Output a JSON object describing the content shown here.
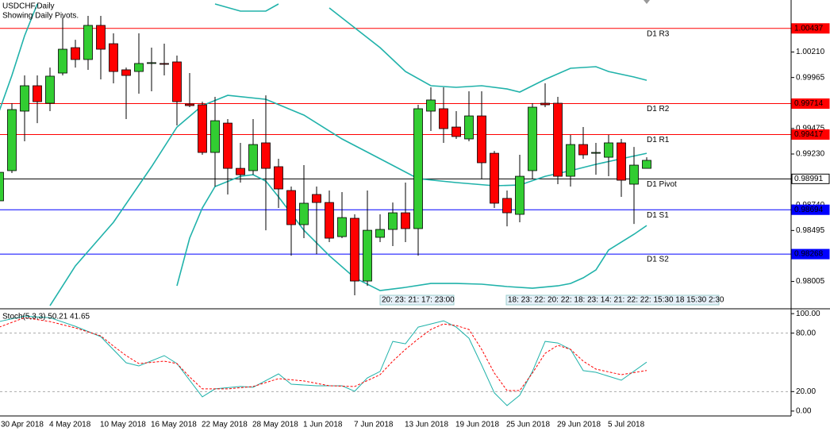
{
  "chart_data": [
    {
      "type": "candlestick",
      "title": "USDCHF,Daily",
      "subtitle": "Showing Daily Pivots.",
      "categories": [
        "30 Apr 2018",
        null,
        null,
        null,
        "4 May 2018",
        null,
        null,
        null,
        "10 May 2018",
        null,
        null,
        null,
        "16 May 2018",
        null,
        null,
        null,
        "22 May 2018",
        null,
        null,
        null,
        "28 May 2018",
        null,
        null,
        null,
        "1 Jun 2018",
        null,
        null,
        null,
        "7 Jun 2018",
        null,
        null,
        null,
        "13 Jun 2018",
        null,
        null,
        null,
        "19 Jun 2018",
        null,
        null,
        null,
        "25 Jun 2018",
        null,
        null,
        null,
        "29 Jun 2018",
        null,
        null,
        null,
        "5 Jul 2018",
        null,
        null,
        null
      ],
      "open": [
        0.9878,
        0.9907,
        0.99642,
        0.99886,
        0.99718,
        1.00008,
        1.00252,
        1.00138,
        1.00466,
        1.0029,
        1.00039,
        1.00023,
        1.001,
        1.001,
        1.00115,
        0.9971,
        0.99703,
        0.99245,
        0.99527,
        0.99092,
        0.9907,
        0.99337,
        0.99108,
        0.98879,
        0.98551,
        0.98841,
        0.98764,
        0.98436,
        0.98612,
        0.98009,
        0.98429,
        0.98505,
        0.98665,
        0.98513,
        0.99642,
        0.99665,
        0.99489,
        0.99375,
        0.99596,
        0.99237,
        0.98803,
        0.9865,
        0.9907,
        0.99718,
        0.99718,
        0.99016,
        0.99321,
        0.99237,
        0.99199,
        0.99337,
        0.9894,
        0.99092
      ],
      "high": [
        0.9926,
        0.99718,
        0.99985,
        0.99985,
        1.00061,
        1.00542,
        1.00328,
        1.00557,
        1.00557,
        1.0039,
        1.00061,
        1.0039,
        1.00252,
        1.0029,
        1.00176,
        1.00008,
        0.99733,
        0.99779,
        0.99566,
        0.99337,
        0.99566,
        0.99794,
        0.99184,
        0.98917,
        0.99123,
        0.98917,
        0.98879,
        0.98864,
        0.9865,
        0.98879,
        0.9865,
        0.98764,
        0.98955,
        0.99703,
        0.99871,
        0.99871,
        0.99642,
        0.99833,
        0.99833,
        0.9926,
        0.98879,
        0.99222,
        0.99718,
        0.99909,
        0.99779,
        0.99413,
        0.99489,
        0.99337,
        0.99413,
        0.99375,
        0.99298,
        0.99199
      ],
      "low": [
        0.98726,
        0.99047,
        0.99352,
        0.99527,
        0.99642,
        0.99985,
        1.00061,
        1.00039,
        0.99947,
        0.99909,
        0.99566,
        0.9981,
        0.99833,
        0.99985,
        0.99505,
        0.9968,
        0.99222,
        0.98917,
        0.98841,
        0.98955,
        0.99031,
        0.98497,
        0.98711,
        0.98253,
        0.98421,
        0.98268,
        0.98383,
        0.98421,
        0.97872,
        0.97963,
        0.98383,
        0.98345,
        0.98383,
        0.98253,
        0.99451,
        0.99337,
        0.99375,
        0.99352,
        0.98993,
        0.98711,
        0.98535,
        0.98574,
        0.98993,
        0.9968,
        0.9894,
        0.98917,
        0.99184,
        0.99031,
        0.99016,
        0.98818,
        0.98558,
        0.99092
      ],
      "close": [
        0.99054,
        0.99657,
        0.99886,
        0.99733,
        0.99978,
        1.00237,
        1.00138,
        1.00466,
        1.00237,
        1.00023,
        0.99985,
        1.001,
        1.00108,
        1.00092,
        0.99733,
        0.99695,
        0.99245,
        0.9955,
        0.99092,
        0.99031,
        0.99321,
        0.99092,
        0.98894,
        0.98551,
        0.98757,
        0.98764,
        0.98421,
        0.98619,
        0.98009,
        0.98497,
        0.98505,
        0.98665,
        0.98513,
        0.99665,
        0.99749,
        0.99474,
        0.99398,
        0.99596,
        0.99146,
        0.98757,
        0.98665,
        0.99016,
        0.9968,
        0.99703,
        0.99016,
        0.99321,
        0.99222,
        0.99245,
        0.99337,
        0.98978,
        0.99123,
        0.99169
      ],
      "up_color": "#32cd32",
      "down_color": "#ff0000",
      "bands": [
        {
          "color": "#20b2aa",
          "x": [
            0,
            1,
            2,
            3,
            10,
            17,
            19,
            21,
            22,
            24,
            26,
            28,
            30,
            32,
            34,
            36,
            38,
            40,
            41,
            43,
            45,
            47,
            48,
            50,
            51
          ],
          "values": [
            0.99642,
            0.99985,
            1.00367,
            1.00672,
            null,
            1.00672,
            1.00603,
            1.00603,
            1.00672,
            null,
            1.00634,
            1.00443,
            1.00252,
            1.00023,
            0.99886,
            0.99871,
            0.99886,
            0.99855,
            0.99825,
            0.99947,
            1.00054,
            1.00069,
            1.00023,
            0.9997,
            0.99939
          ]
        },
        {
          "color": "#20b2aa",
          "x": [
            4,
            6,
            9,
            12,
            14,
            16,
            18,
            21,
            24,
            27,
            30,
            33,
            36,
            39,
            41,
            43,
            45,
            47,
            49,
            51
          ],
          "values": [
            0.97772,
            0.98154,
            0.98574,
            0.99108,
            0.99489,
            0.99695,
            0.99794,
            0.99756,
            0.99604,
            0.99375,
            0.99184,
            0.98993,
            0.98955,
            0.98925,
            0.98932,
            0.99016,
            0.9907,
            0.99131,
            0.99184,
            0.99237
          ]
        },
        {
          "color": "#20b2aa",
          "x": [
            14,
            15,
            16,
            17,
            19,
            20,
            21,
            22,
            24,
            26,
            28,
            30,
            32,
            34,
            36,
            38,
            40,
            42,
            44,
            45,
            46,
            47,
            48,
            50,
            51
          ],
          "values": [
            0.97963,
            0.98421,
            0.98711,
            0.98917,
            0.99016,
            0.99031,
            0.9897,
            0.98818,
            0.98497,
            0.98253,
            0.9804,
            0.97917,
            0.97948,
            0.97986,
            0.97986,
            0.97979,
            0.97956,
            0.9794,
            0.97963,
            0.97986,
            0.9804,
            0.98116,
            0.98307,
            0.98459,
            0.98543
          ]
        }
      ],
      "pivots": [
        {
          "name": "D1 R3",
          "value": 1.00437,
          "color": "#ff0000"
        },
        {
          "name": "D1 R2",
          "value": 0.99714,
          "color": "#ff0000"
        },
        {
          "name": "D1 R1",
          "value": 0.99417,
          "color": "#ff0000"
        },
        {
          "name": "D1 Pivot",
          "value": 0.98991,
          "color": "#000000"
        },
        {
          "name": "D1 S1",
          "value": 0.98694,
          "color": "#0000ff"
        },
        {
          "name": "D1 S2",
          "value": 0.98268,
          "color": "#0000ff"
        }
      ],
      "ylim": [
        0.9775,
        1.0071
      ],
      "yticks": [
        {
          "value": 1.0021,
          "label": "1.00210"
        },
        0.99965,
        0.99475,
        {
          "value": 0.9923,
          "label": "0.99230"
        },
        {
          "value": 0.9874,
          "label": "0.98740"
        },
        0.98495,
        0.98005
      ],
      "time_labels": [
        "20: 23: 21: 17: 23:00",
        "18: 23: 22: 20: 22: 18: 23: 14: 21: 22: 22: 15:30 18 15:30 2:30"
      ]
    },
    {
      "type": "line",
      "title": "Stoch(5,3,3) 50.21 41.65",
      "series": [
        {
          "color": "#20b2aa",
          "dash": false,
          "x": [
            0,
            2,
            4,
            6,
            8,
            10,
            11,
            13,
            14,
            16,
            17,
            19,
            20,
            22,
            23,
            25,
            27,
            28,
            29,
            30,
            31,
            32,
            33,
            35,
            36,
            37,
            38,
            39,
            40,
            41,
            42,
            43,
            44,
            45,
            46,
            47,
            49,
            51
          ],
          "values": [
            91.9,
            97.6,
            95.9,
            87,
            76.4,
            49.6,
            46.3,
            56.9,
            48.8,
            14.6,
            22.8,
            25.2,
            24.4,
            38.2,
            27.6,
            26,
            26,
            20.3,
            34.1,
            40.7,
            71.5,
            69.1,
            86.2,
            92.7,
            86.2,
            74.8,
            47.2,
            18.7,
            5.7,
            16.3,
            40.7,
            71.5,
            69.9,
            63.4,
            41.5,
            39.8,
            31.7,
            50.21
          ]
        },
        {
          "color": "#ff0000",
          "dash": true,
          "x": [
            0,
            2,
            4,
            6,
            8,
            9,
            10,
            11,
            13,
            14,
            15,
            16,
            18,
            20,
            22,
            24,
            26,
            28,
            30,
            31,
            32,
            33,
            34,
            35,
            36,
            37,
            38,
            39,
            40,
            41,
            42,
            43,
            44,
            45,
            46,
            47,
            49,
            51
          ],
          "values": [
            86.2,
            95.9,
            91.9,
            85.4,
            77.2,
            66.7,
            56.9,
            48.8,
            51.2,
            48.8,
            35,
            22.8,
            22.8,
            25.2,
            33.3,
            30.9,
            26,
            25.2,
            37.4,
            51.2,
            63.4,
            74,
            83.7,
            89.4,
            87.8,
            83.7,
            63.4,
            39,
            21.1,
            21.1,
            39,
            59.3,
            67.5,
            63.4,
            51.2,
            43.1,
            37.4,
            41.65
          ]
        }
      ],
      "levels": [
        80,
        20
      ],
      "ylim": [
        -5,
        105
      ],
      "yticks": [
        {
          "value": 100,
          "label": "100.00"
        },
        {
          "value": 80,
          "label": "80.00"
        },
        {
          "value": 20,
          "label": "20.00"
        },
        {
          "value": 0,
          "label": "0.00"
        }
      ]
    }
  ]
}
